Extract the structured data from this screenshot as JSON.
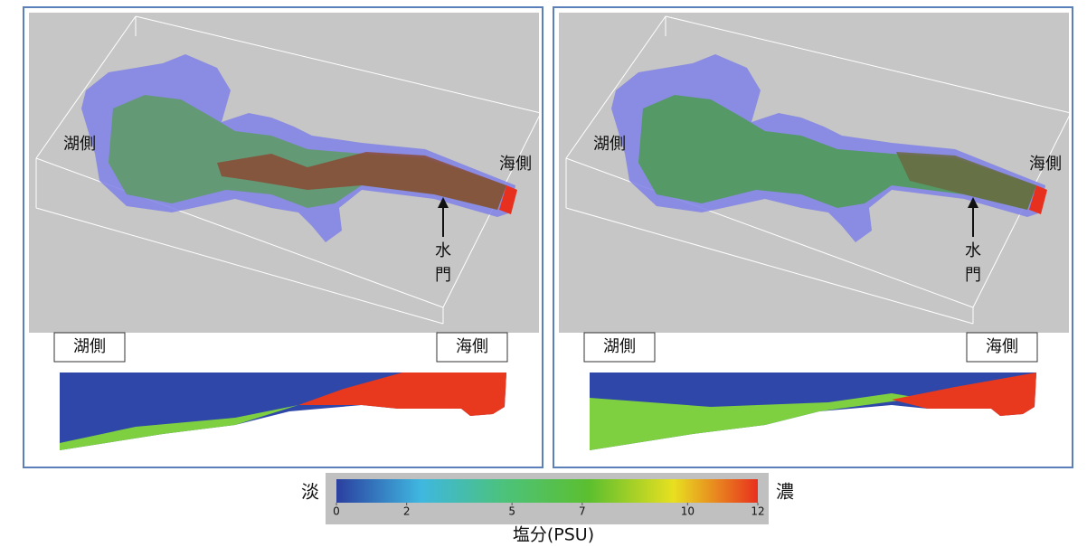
{
  "panels": [
    {
      "lake_side_3d": "湖側",
      "sea_side_3d": "海側",
      "gate": [
        "水",
        "門"
      ],
      "lake_side_section": "湖側",
      "sea_side_section": "海側"
    },
    {
      "lake_side_3d": "湖側",
      "sea_side_3d": "海側",
      "gate": [
        "水",
        "門"
      ],
      "lake_side_section": "湖側",
      "sea_side_section": "海側"
    }
  ],
  "colorbar": {
    "fresh_label": "淡",
    "salty_label": "濃",
    "range": [
      0,
      12
    ],
    "ticks": [
      0,
      2,
      5,
      7,
      10,
      12
    ],
    "label": "塩分(PSU)",
    "colors": [
      "#2b3f9f",
      "#3fb7e0",
      "#4cc27a",
      "#5cbf2f",
      "#e8e020",
      "#e8301e"
    ]
  }
}
